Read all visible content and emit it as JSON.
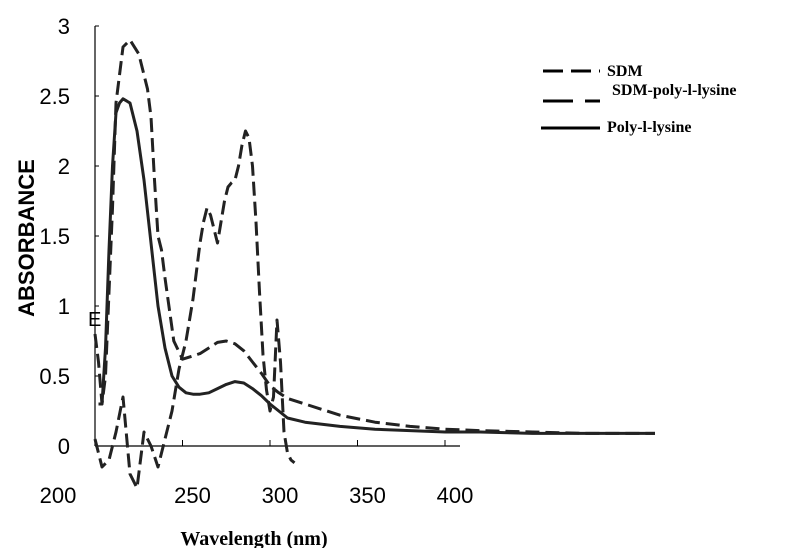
{
  "chart_data": {
    "type": "line",
    "title": "",
    "xlabel": "Wavelength (nm)",
    "ylabel": "ABSORBANCE",
    "xlim": [
      200,
      520
    ],
    "ylim": [
      0,
      3
    ],
    "x_ticks": [
      "200",
      "250",
      "300",
      "350",
      "400"
    ],
    "y_ticks": [
      "0",
      "0.5",
      "1",
      "1.5",
      "2",
      "2.5",
      "3"
    ],
    "grid": false,
    "legend_position": "top-right",
    "stray_label": "E",
    "series": [
      {
        "name": "SDM",
        "style": "dashed",
        "color": "#222222",
        "x": [
          200,
          204,
          208,
          212,
          216,
          220,
          224,
          228,
          232,
          236,
          240,
          244,
          248,
          252,
          256,
          260,
          262,
          264,
          266,
          268,
          270,
          272,
          274,
          276,
          278,
          280,
          282,
          284,
          286,
          288,
          290,
          292,
          294,
          296,
          298,
          300,
          302,
          304,
          306,
          308,
          310,
          312,
          314
        ],
        "y": [
          0.05,
          -0.15,
          -0.1,
          0.1,
          0.35,
          -0.2,
          -0.3,
          0.1,
          0.0,
          -0.15,
          0.05,
          0.25,
          0.55,
          0.75,
          1.05,
          1.45,
          1.6,
          1.7,
          1.65,
          1.55,
          1.45,
          1.6,
          1.75,
          1.85,
          1.88,
          1.9,
          2.0,
          2.15,
          2.25,
          2.2,
          2.0,
          1.6,
          1.1,
          0.65,
          0.4,
          0.25,
          0.35,
          0.9,
          0.6,
          0.1,
          -0.05,
          -0.1,
          -0.12
        ]
      },
      {
        "name": "SDM-poly-l-lysine",
        "style": "dashed",
        "color": "#222222",
        "x": [
          200,
          202,
          204,
          206,
          208,
          210,
          212,
          216,
          220,
          225,
          230,
          232,
          234,
          236,
          238,
          240,
          245,
          250,
          255,
          260,
          265,
          270,
          275,
          280,
          285,
          290,
          295,
          300,
          305,
          310,
          320,
          340,
          360,
          380,
          400,
          420,
          450,
          480,
          520
        ],
        "y": [
          0.8,
          0.6,
          0.3,
          0.5,
          1.1,
          1.7,
          2.45,
          2.85,
          2.9,
          2.8,
          2.55,
          2.35,
          1.9,
          1.5,
          1.4,
          1.2,
          0.75,
          0.62,
          0.64,
          0.66,
          0.7,
          0.74,
          0.75,
          0.73,
          0.68,
          0.6,
          0.52,
          0.43,
          0.38,
          0.34,
          0.3,
          0.22,
          0.17,
          0.14,
          0.12,
          0.11,
          0.1,
          0.09,
          0.09
        ]
      },
      {
        "name": "Poly-l-lysine",
        "style": "solid",
        "color": "#222222",
        "x": [
          202,
          204,
          206,
          208,
          210,
          212,
          214,
          216,
          220,
          224,
          228,
          232,
          236,
          240,
          244,
          248,
          252,
          256,
          260,
          265,
          270,
          275,
          280,
          285,
          290,
          295,
          300,
          305,
          310,
          320,
          340,
          360,
          380,
          400,
          420,
          450,
          480,
          520
        ],
        "y": [
          0.3,
          0.3,
          0.7,
          1.4,
          2.0,
          2.38,
          2.45,
          2.48,
          2.45,
          2.25,
          1.9,
          1.45,
          1.0,
          0.7,
          0.5,
          0.42,
          0.38,
          0.37,
          0.37,
          0.38,
          0.41,
          0.44,
          0.46,
          0.45,
          0.41,
          0.36,
          0.3,
          0.25,
          0.2,
          0.17,
          0.14,
          0.12,
          0.11,
          0.1,
          0.1,
          0.09,
          0.09,
          0.09
        ]
      }
    ]
  }
}
